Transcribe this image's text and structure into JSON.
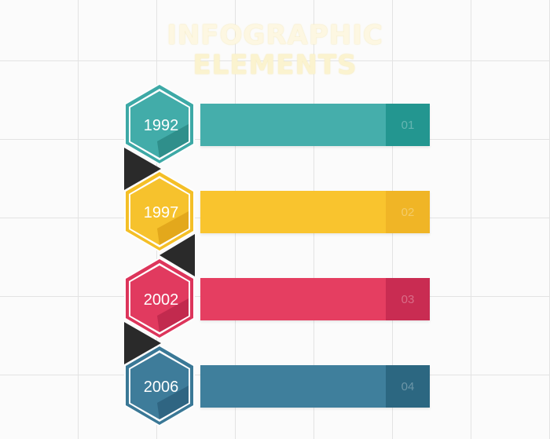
{
  "header": {
    "title_line1": "INFOGRAPHIC",
    "title_line2": "ELEMENTS"
  },
  "milestones": [
    {
      "year": "1992",
      "number": "01",
      "color": "#42aca9",
      "color_dark": "#2f8f8b",
      "tab_color": "#239690",
      "bar_color": "#45aeab"
    },
    {
      "year": "1997",
      "number": "02",
      "color": "#f6c22d",
      "color_dark": "#e3a81c",
      "tab_color": "#f0b526",
      "bar_color": "#f9c42e"
    },
    {
      "year": "2002",
      "number": "03",
      "color": "#e13a5f",
      "color_dark": "#c22a4e",
      "tab_color": "#c92c52",
      "bar_color": "#e53e61"
    },
    {
      "year": "2006",
      "number": "04",
      "color": "#3e7c9a",
      "color_dark": "#2f6582",
      "tab_color": "#2c6781",
      "bar_color": "#3f7f9c"
    }
  ],
  "connector_color": "#2a2a2a"
}
